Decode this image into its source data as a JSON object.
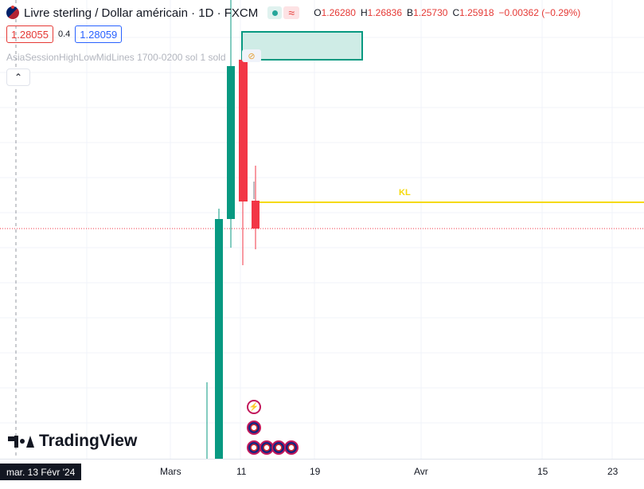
{
  "header": {
    "symbol_title": "Livre sterling / Dollar américain · 1D · FXCM",
    "status_wave": "≈",
    "ohlc": {
      "o_label": "O",
      "o": "1.26280",
      "h_label": "H",
      "h": "1.26836",
      "b_label": "B",
      "b": "1.25730",
      "c_label": "C",
      "c": "1.25918",
      "change": "−0.00362 (−0.29%)"
    }
  },
  "trade": {
    "sell_price": "1.28055",
    "spread": "0.4",
    "buy_price": "1.28059"
  },
  "indicator": {
    "label": "AsiaSessionHighLowMidLines 1700-0200 sol 1 sold"
  },
  "collapse_icon": "chevron-up",
  "drawing": {
    "kl_label": "KL"
  },
  "branding": {
    "logo_text": "TradingView"
  },
  "time_axis": {
    "selected_label": "mar. 13 Févr '24",
    "labels": [
      "Mars",
      "11",
      "19",
      "Avr",
      "15",
      "23"
    ]
  },
  "colors": {
    "up": "#089981",
    "down": "#f23645",
    "kl_line": "#f5d90a",
    "zone_fill": "#cfece6",
    "zone_border": "#089981"
  },
  "events": [
    "lightning-icon",
    "uk-flag-icon",
    "us-flag-icon",
    "uk-flag-icon",
    "uk-flag-icon",
    "us-flag-icon"
  ]
}
